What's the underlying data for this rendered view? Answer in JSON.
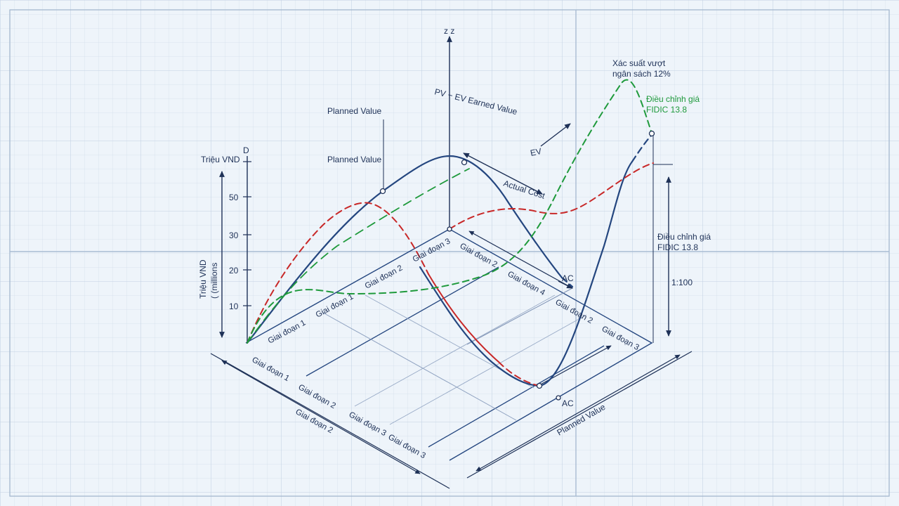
{
  "colors": {
    "background": "#eef4fa",
    "grid": "#c9d6e6",
    "axis": "#1e3157",
    "planned_value": "#24467f",
    "actual_cost": "#c82828",
    "earned_value": "#1f9a3c",
    "annotation_green": "#1f9a3c"
  },
  "axes": {
    "z_label": "z z",
    "d_label": "D",
    "y_unit": "Triệu VND",
    "y_axis_title_line1": "Triệu VND",
    "y_axis_title_line2": "( (millions",
    "y_ticks": [
      "50",
      "30",
      "20",
      "10"
    ]
  },
  "annotations": {
    "planned_value_top": "Planned Value",
    "planned_value_mid": "Planned Value",
    "pv_ev": "PV − EV Earned Value",
    "ev": "EV",
    "actual_cost": "Actual Cost",
    "ac_1": "AC",
    "ac_2": "AC",
    "overrun_line1": "Xác suất vượt",
    "overrun_line2": "ngân sách 12%",
    "fidic_green_line1": "Điều chỉnh giá",
    "fidic_green_line2": "FIDIC 13.8",
    "fidic_right_line1": "Điều chỉnh giá",
    "fidic_right_line2": "FIDIC 13.8",
    "scale": "1:100",
    "planned_value_bottom": "Planned Value"
  },
  "stage_labels": {
    "plane_left": [
      "Giai đoạn 1",
      "Giai đoạn 1",
      "Giai đoạn 2",
      "Giai đoạn 3"
    ],
    "plane_right": [
      "Giai đoạn 2",
      "Giai đoạn 4",
      "Giai đoạn 2",
      "Giai đoạn 3"
    ],
    "front_left": [
      "Giai đoạn 1",
      "Giai đoạn 2",
      "Giai đoạn 2",
      "Giai đoạn 3",
      "Giai đoạn 3"
    ]
  }
}
